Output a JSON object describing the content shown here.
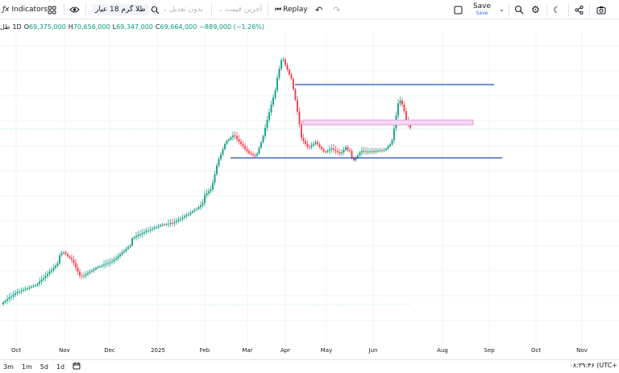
{
  "toolbar": {
    "indicators_label": "Indicators",
    "symbol_name": "طلا گرم 18 عیار",
    "adjust_label": "بدون تعدیل",
    "price_label": "آخرین قیمت",
    "replay_label": "Replay",
    "save_label": "Save",
    "save_sublabel": "Save"
  },
  "legend": {
    "symbol_short": "طل",
    "interval": "1D",
    "open_label": "O",
    "open": "69,375,000",
    "high_label": "H",
    "high": "70,656,000",
    "low_label": "L",
    "low": "69,347,000",
    "close_label": "C",
    "close": "69,664,000",
    "change": "−889,000 (−1.26%)"
  },
  "xaxis": {
    "ticks": [
      "Oct",
      "Nov",
      "Dec",
      "2025",
      "Feb",
      "Mar",
      "Apr",
      "May",
      "Jun",
      "Aug",
      "Sep",
      "Oct",
      "Nov"
    ]
  },
  "bottom": {
    "ranges": [
      "3m",
      "1m",
      "5d",
      "1d"
    ],
    "clock": "۰۸:۳۹:۴۶ (UTC+"
  },
  "colors": {
    "up": "#089981",
    "down": "#f23645",
    "hline": "#1e4eb5",
    "zone_fill": "#f8d7f5",
    "zone_stroke": "#d38fd0",
    "last_price": "#7fd6c6"
  }
}
